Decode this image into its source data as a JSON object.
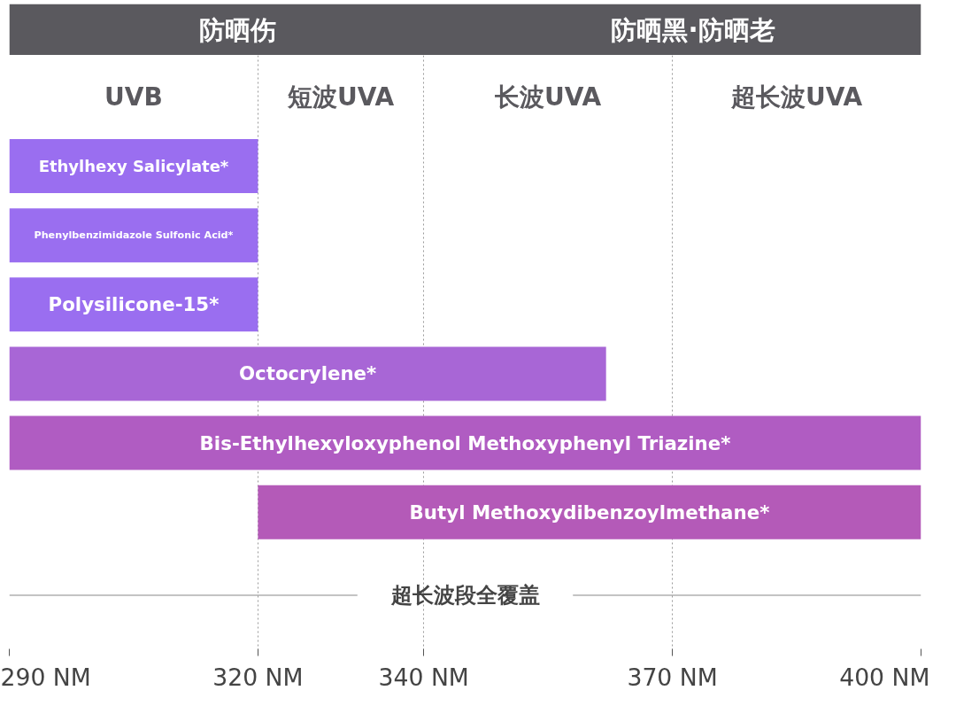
{
  "chart_data": {
    "type": "bar",
    "orientation": "horizontal",
    "categories": [
      "Ethylhexy Salicylate*",
      "Phenylbenzimidazole Sulfonic Acid*",
      "Polysilicone-15*",
      "Octocrylene*",
      "Bis-Ethylhexyloxyphenol Methoxyphenyl Triazine*",
      "Butyl Methoxydibenzoylmethane*"
    ],
    "base": [
      290,
      290,
      290,
      290,
      290,
      320
    ],
    "values": [
      30,
      30,
      30,
      72,
      110,
      80
    ],
    "colors": [
      "#9a6ef0",
      "#9a6ef0",
      "#9a6ef0",
      "#a866d6",
      "#b05cc2",
      "#b45ab8"
    ],
    "xlim": [
      290,
      400
    ],
    "xticks": [
      {
        "value": 290,
        "label": "290 NM"
      },
      {
        "value": 320,
        "label": "320 NM"
      },
      {
        "value": 340,
        "label": "340 NM"
      },
      {
        "value": 370,
        "label": "370 NM"
      },
      {
        "value": 400,
        "label": "400 NM"
      }
    ],
    "grid": "x",
    "annotations": [
      "防晒伤",
      "防晒黑·防晒老",
      "UVB",
      "短波UVA",
      "长波UVA",
      "超长波UVA",
      "超长波段全覆盖"
    ]
  }
}
